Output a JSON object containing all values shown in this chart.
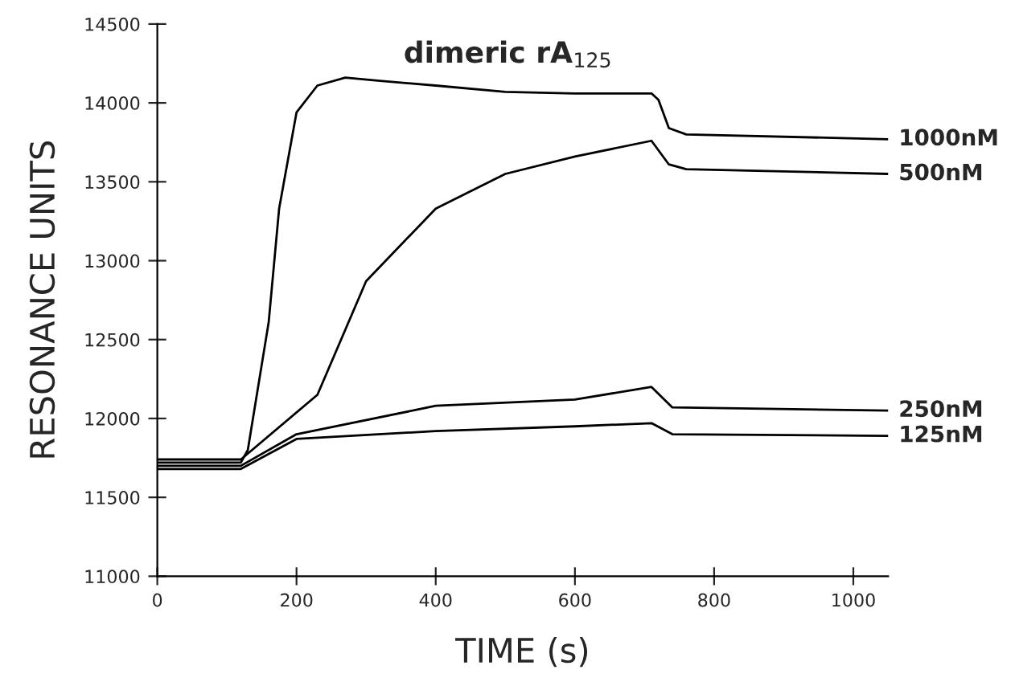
{
  "chart_data": {
    "type": "line",
    "title": "dimeric rA$_{125}$",
    "xlabel": "TIME (s)",
    "ylabel": "RESONANCE UNITS",
    "xlim": [
      0,
      1050
    ],
    "xticks": [
      0,
      200,
      400,
      600,
      800,
      1000
    ],
    "ylim": [
      11000,
      14500
    ],
    "yticks": [
      11000,
      11500,
      12000,
      12500,
      13000,
      13500,
      14000,
      14500
    ],
    "grid": false,
    "legend": false,
    "marker": "none",
    "line_style": "solid",
    "series": [
      {
        "name": "1000nM",
        "color": "#000000",
        "x": [
          0,
          120,
          130,
          160,
          175,
          200,
          230,
          270,
          320,
          400,
          500,
          600,
          710,
          720,
          735,
          760,
          1050
        ],
        "values": [
          11720,
          11720,
          11800,
          12610,
          13330,
          13940,
          14110,
          14160,
          14140,
          14110,
          14070,
          14060,
          14060,
          14020,
          13840,
          13800,
          13770
        ]
      },
      {
        "name": "500nM",
        "color": "#000000",
        "x": [
          0,
          120,
          230,
          300,
          400,
          500,
          600,
          710,
          735,
          760,
          1050
        ],
        "values": [
          11740,
          11740,
          12150,
          12870,
          13330,
          13550,
          13660,
          13760,
          13610,
          13580,
          13550
        ]
      },
      {
        "name": "250nM",
        "color": "#000000",
        "x": [
          0,
          120,
          200,
          400,
          600,
          710,
          740,
          1050
        ],
        "values": [
          11700,
          11700,
          11900,
          12080,
          12120,
          12200,
          12070,
          12050
        ]
      },
      {
        "name": "125nM",
        "color": "#000000",
        "x": [
          0,
          120,
          200,
          400,
          600,
          710,
          740,
          1050
        ],
        "values": [
          11680,
          11680,
          11870,
          11920,
          11950,
          11970,
          11900,
          11890
        ]
      }
    ]
  }
}
